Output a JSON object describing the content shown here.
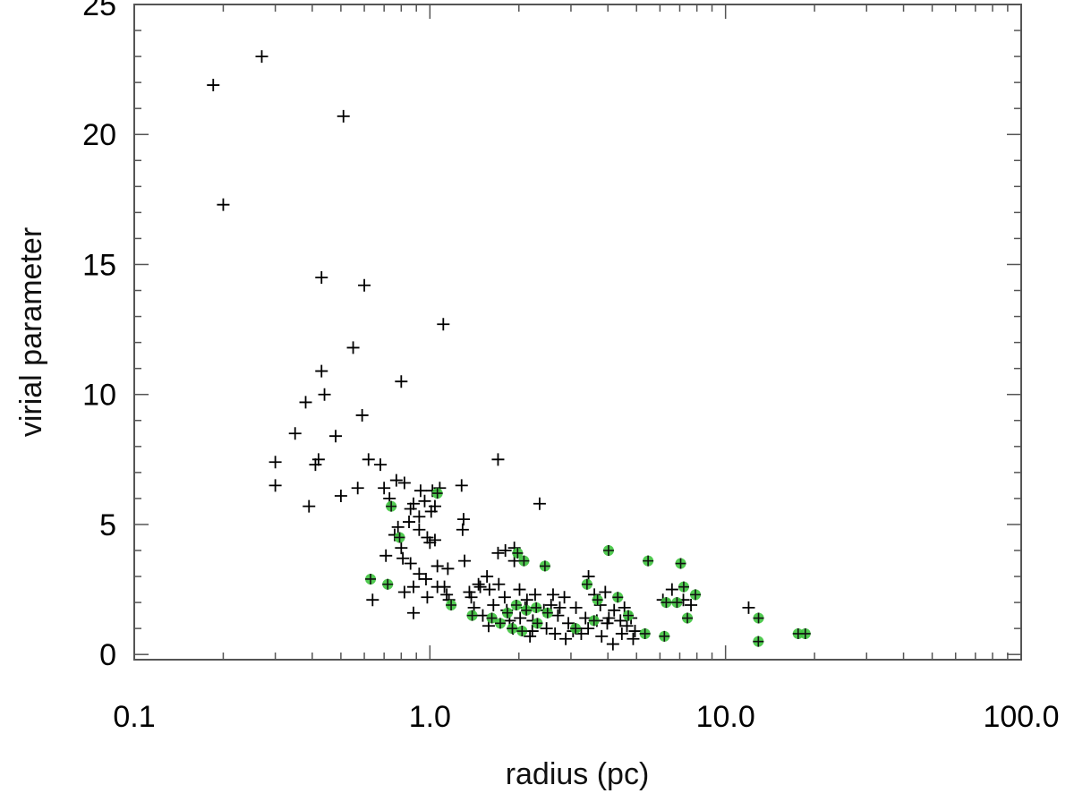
{
  "chart_data": {
    "type": "scatter",
    "title": "",
    "xlabel": "radius (pc)",
    "ylabel": "virial parameter",
    "xscale": "log",
    "xlim": [
      0.1,
      100.0
    ],
    "ylim": [
      -0.2,
      25.0
    ],
    "xticks": [
      {
        "value": 0.1,
        "label": "0.1"
      },
      {
        "value": 1.0,
        "label": "1.0"
      },
      {
        "value": 10.0,
        "label": "10.0"
      },
      {
        "value": 100.0,
        "label": "100.0"
      }
    ],
    "yticks": [
      {
        "value": 0,
        "label": "0"
      },
      {
        "value": 5,
        "label": "5"
      },
      {
        "value": 10,
        "label": "10"
      },
      {
        "value": 15,
        "label": "15"
      },
      {
        "value": 20,
        "label": "20"
      },
      {
        "value": 25,
        "label": "25"
      }
    ],
    "grid": false,
    "legend": "none",
    "series": [
      {
        "marker": "plus",
        "color": "#000000",
        "points": [
          [
            0.185,
            21.9
          ],
          [
            0.27,
            23.0
          ],
          [
            0.2,
            17.3
          ],
          [
            0.51,
            20.7
          ],
          [
            0.43,
            14.5
          ],
          [
            0.6,
            14.2
          ],
          [
            1.11,
            12.7
          ],
          [
            0.55,
            11.8
          ],
          [
            0.43,
            10.9
          ],
          [
            0.8,
            10.5
          ],
          [
            0.44,
            10.0
          ],
          [
            0.38,
            9.7
          ],
          [
            0.59,
            9.2
          ],
          [
            0.35,
            8.5
          ],
          [
            0.48,
            8.4
          ],
          [
            0.3,
            7.4
          ],
          [
            0.42,
            7.5
          ],
          [
            0.41,
            7.3
          ],
          [
            0.62,
            7.5
          ],
          [
            0.68,
            7.3
          ],
          [
            1.7,
            7.5
          ],
          [
            0.3,
            6.5
          ],
          [
            0.57,
            6.4
          ],
          [
            0.5,
            6.1
          ],
          [
            0.39,
            5.7
          ],
          [
            0.7,
            6.4
          ],
          [
            0.77,
            6.7
          ],
          [
            0.82,
            6.6
          ],
          [
            0.93,
            6.3
          ],
          [
            1.02,
            6.3
          ],
          [
            1.08,
            6.4
          ],
          [
            1.28,
            6.5
          ],
          [
            0.73,
            6.0
          ],
          [
            0.88,
            5.8
          ],
          [
            0.96,
            5.9
          ],
          [
            1.04,
            5.7
          ],
          [
            2.35,
            5.8
          ],
          [
            0.86,
            5.6
          ],
          [
            0.92,
            5.3
          ],
          [
            1.01,
            5.5
          ],
          [
            1.3,
            5.2
          ],
          [
            0.78,
            4.9
          ],
          [
            0.85,
            5.1
          ],
          [
            0.92,
            4.8
          ],
          [
            1.29,
            4.8
          ],
          [
            0.76,
            4.6
          ],
          [
            0.98,
            4.5
          ],
          [
            1.0,
            4.3
          ],
          [
            1.04,
            4.4
          ],
          [
            0.8,
            4.1
          ],
          [
            1.8,
            4.0
          ],
          [
            1.93,
            4.1
          ],
          [
            0.71,
            3.8
          ],
          [
            0.81,
            3.7
          ],
          [
            0.86,
            3.5
          ],
          [
            1.06,
            3.4
          ],
          [
            1.31,
            3.6
          ],
          [
            1.7,
            3.9
          ],
          [
            1.93,
            3.6
          ],
          [
            0.92,
            3.1
          ],
          [
            0.97,
            2.9
          ],
          [
            1.15,
            3.3
          ],
          [
            1.56,
            3.0
          ],
          [
            1.46,
            2.7
          ],
          [
            3.44,
            3.0
          ],
          [
            1.06,
            2.6
          ],
          [
            1.14,
            2.3
          ],
          [
            1.48,
            2.6
          ],
          [
            1.59,
            2.5
          ],
          [
            1.71,
            2.7
          ],
          [
            0.82,
            2.4
          ],
          [
            0.88,
            2.6
          ],
          [
            0.98,
            2.2
          ],
          [
            1.16,
            2.1
          ],
          [
            1.36,
            2.4
          ],
          [
            1.38,
            2.2
          ],
          [
            1.79,
            2.2
          ],
          [
            2.01,
            2.5
          ],
          [
            2.13,
            2.1
          ],
          [
            2.27,
            2.3
          ],
          [
            2.61,
            2.3
          ],
          [
            2.85,
            2.2
          ],
          [
            3.6,
            2.3
          ],
          [
            3.92,
            2.4
          ],
          [
            6.59,
            2.5
          ],
          [
            7.2,
            2.1
          ],
          [
            0.64,
            2.1
          ],
          [
            0.88,
            1.6
          ],
          [
            1.41,
            1.8
          ],
          [
            1.64,
            1.9
          ],
          [
            1.82,
            1.7
          ],
          [
            2.1,
            1.8
          ],
          [
            2.43,
            1.7
          ],
          [
            2.57,
            1.9
          ],
          [
            2.75,
            1.8
          ],
          [
            3.12,
            1.8
          ],
          [
            3.77,
            1.9
          ],
          [
            4.2,
            1.7
          ],
          [
            4.55,
            1.8
          ],
          [
            6.14,
            2.1
          ],
          [
            7.64,
            1.9
          ],
          [
            11.97,
            1.8
          ],
          [
            1.51,
            1.5
          ],
          [
            1.86,
            1.3
          ],
          [
            2.02,
            1.4
          ],
          [
            2.23,
            1.3
          ],
          [
            2.71,
            1.5
          ],
          [
            2.94,
            1.2
          ],
          [
            3.36,
            1.4
          ],
          [
            3.67,
            1.3
          ],
          [
            4.03,
            1.4
          ],
          [
            4.41,
            1.3
          ],
          [
            4.79,
            1.4
          ],
          [
            1.58,
            1.1
          ],
          [
            1.91,
            1.0
          ],
          [
            2.22,
            0.9
          ],
          [
            2.48,
            1.0
          ],
          [
            3.05,
            0.9
          ],
          [
            3.43,
            1.0
          ],
          [
            3.98,
            1.2
          ],
          [
            4.64,
            1.1
          ],
          [
            2.18,
            0.7
          ],
          [
            2.88,
            0.6
          ],
          [
            3.25,
            0.8
          ],
          [
            3.81,
            0.7
          ],
          [
            4.46,
            0.8
          ],
          [
            4.94,
            0.9
          ],
          [
            2.65,
            0.8
          ],
          [
            4.16,
            0.4
          ],
          [
            4.87,
            0.6
          ],
          [
            1.12,
            2.6
          ]
        ]
      },
      {
        "marker": "plus-highlight",
        "color": "#3ec43e",
        "points": [
          [
            0.74,
            5.7
          ],
          [
            1.06,
            6.2
          ],
          [
            0.79,
            4.5
          ],
          [
            1.98,
            3.9
          ],
          [
            2.08,
            3.6
          ],
          [
            2.45,
            3.4
          ],
          [
            4.02,
            4.0
          ],
          [
            5.47,
            3.6
          ],
          [
            7.05,
            3.5
          ],
          [
            0.63,
            2.9
          ],
          [
            0.72,
            2.7
          ],
          [
            1.18,
            1.9
          ],
          [
            1.39,
            1.5
          ],
          [
            1.62,
            1.4
          ],
          [
            1.83,
            1.6
          ],
          [
            1.96,
            1.9
          ],
          [
            2.12,
            1.7
          ],
          [
            2.29,
            1.8
          ],
          [
            2.5,
            1.6
          ],
          [
            3.4,
            2.7
          ],
          [
            3.69,
            2.1
          ],
          [
            4.32,
            2.2
          ],
          [
            4.69,
            1.5
          ],
          [
            6.3,
            2.0
          ],
          [
            6.85,
            2.0
          ],
          [
            7.22,
            2.6
          ],
          [
            7.91,
            2.3
          ],
          [
            1.73,
            1.2
          ],
          [
            1.9,
            1.0
          ],
          [
            2.05,
            0.9
          ],
          [
            2.31,
            1.2
          ],
          [
            3.11,
            1.0
          ],
          [
            3.59,
            1.3
          ],
          [
            5.34,
            0.8
          ],
          [
            6.21,
            0.7
          ],
          [
            7.43,
            1.4
          ],
          [
            12.93,
            1.4
          ],
          [
            12.91,
            0.5
          ],
          [
            17.6,
            0.8
          ],
          [
            18.61,
            0.8
          ]
        ]
      }
    ]
  }
}
